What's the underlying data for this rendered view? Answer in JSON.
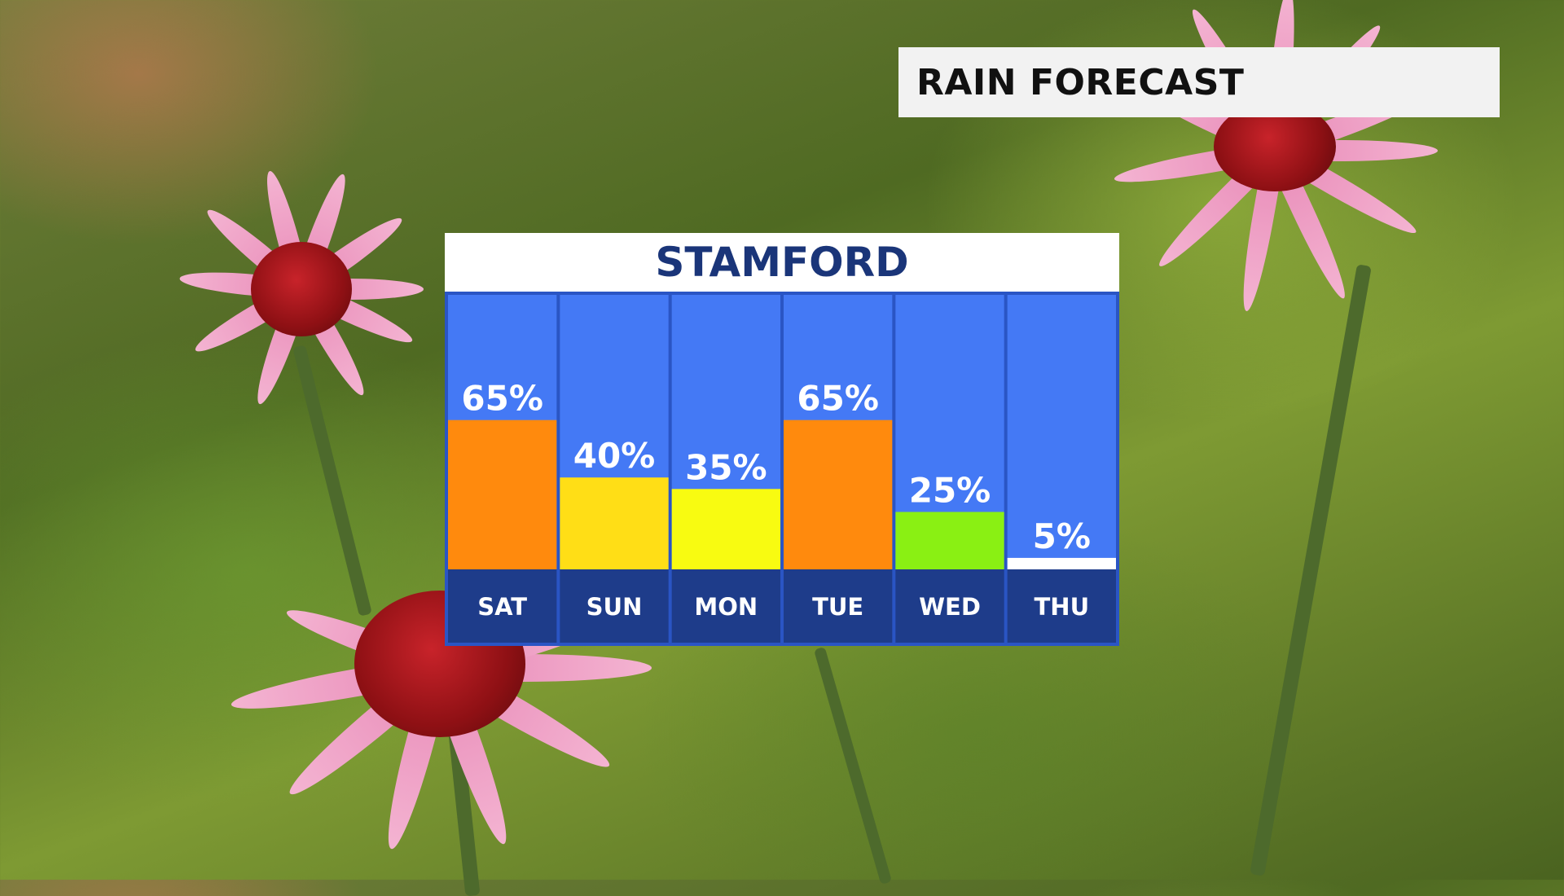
{
  "header": {
    "title": "RAIN FORECAST"
  },
  "colors": {
    "column_bg": "#4479f5",
    "day_strip": "#1e3c8a",
    "frame": "#2a55c4",
    "low": "#ffffff",
    "green": "#8af013",
    "yellow": "#f8fb11",
    "gold": "#ffde16",
    "orange": "#ff8a0d"
  },
  "chart_data": {
    "type": "bar",
    "title": "STAMFORD",
    "categories": [
      "SAT",
      "SUN",
      "MON",
      "TUE",
      "WED",
      "THU"
    ],
    "values": [
      65,
      40,
      35,
      65,
      25,
      5
    ],
    "value_labels": [
      "65%",
      "40%",
      "35%",
      "65%",
      "25%",
      "5%"
    ],
    "bar_colors": [
      "#ff8a0d",
      "#ffde16",
      "#f8fb11",
      "#ff8a0d",
      "#8af013",
      "#ffffff"
    ],
    "unit": "%",
    "ylim": [
      0,
      100
    ],
    "grid": false,
    "legend": "none"
  }
}
